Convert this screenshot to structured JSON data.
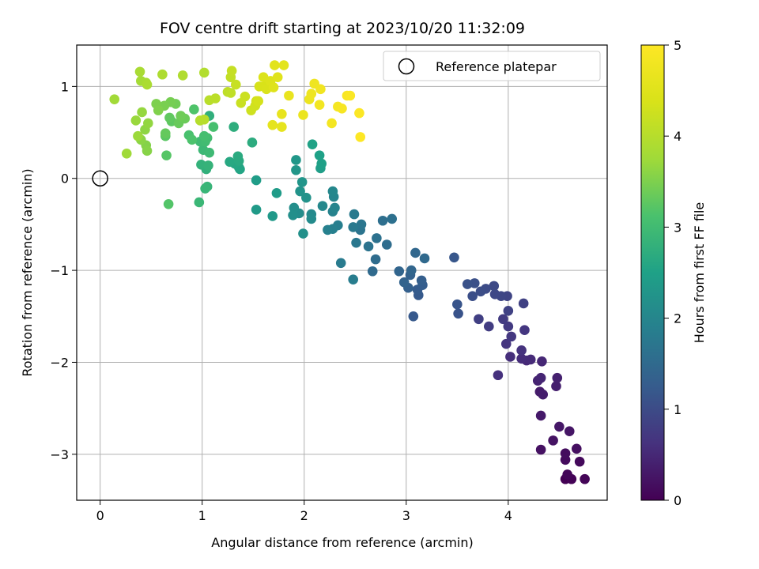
{
  "chart_data": {
    "type": "scatter",
    "title": "FOV centre drift starting at 2023/10/20 11:32:09",
    "xlabel": "Angular distance from reference (arcmin)",
    "ylabel": "Rotation from reference (arcmin)",
    "xlim": [
      -0.23,
      4.97
    ],
    "ylim": [
      -3.5,
      1.45
    ],
    "xticks": [
      0,
      1,
      2,
      3,
      4
    ],
    "yticks": [
      1,
      0,
      -1,
      -2,
      -3
    ],
    "grid": true,
    "legend": {
      "placement": "top-right",
      "entries": [
        "Reference platepar"
      ]
    },
    "reference_point": {
      "x": 0,
      "y": 0,
      "label": "Reference platepar"
    },
    "colorbar": {
      "label": "Hours from first FF file",
      "colormap": "viridis",
      "range": [
        0,
        5
      ],
      "ticks": [
        0,
        1,
        2,
        3,
        4,
        5
      ]
    },
    "series": [
      {
        "points": [
          [
            4.56,
            -3.27
          ],
          [
            4.62,
            -3.27
          ],
          [
            4.75,
            -3.27
          ],
          [
            4.58,
            -3.22
          ],
          [
            4.7,
            -3.08
          ],
          [
            4.56,
            -3.06
          ],
          [
            4.56,
            -2.99
          ],
          [
            4.67,
            -2.94
          ],
          [
            4.32,
            -2.95
          ],
          [
            4.44,
            -2.85
          ],
          [
            4.6,
            -2.75
          ],
          [
            4.5,
            -2.7
          ],
          [
            4.32,
            -2.58
          ],
          [
            4.31,
            -2.32
          ],
          [
            4.34,
            -2.35
          ],
          [
            4.47,
            -2.26
          ],
          [
            4.48,
            -2.17
          ],
          [
            4.29,
            -2.2
          ],
          [
            4.32,
            -2.17
          ],
          [
            4.33,
            -1.99
          ],
          [
            4.18,
            -1.98
          ],
          [
            4.22,
            -1.97
          ],
          [
            4.13,
            -1.96
          ],
          [
            4.02,
            -1.94
          ],
          [
            3.9,
            -2.14
          ],
          [
            4.13,
            -1.87
          ],
          [
            3.98,
            -1.8
          ],
          [
            4.16,
            -1.65
          ],
          [
            4.03,
            -1.72
          ],
          [
            4.0,
            -1.61
          ],
          [
            3.95,
            -1.53
          ],
          [
            3.81,
            -1.61
          ],
          [
            3.71,
            -1.53
          ],
          [
            4.15,
            -1.36
          ],
          [
            4.0,
            -1.44
          ],
          [
            3.99,
            -1.28
          ],
          [
            3.93,
            -1.28
          ],
          [
            3.87,
            -1.26
          ],
          [
            3.86,
            -1.17
          ],
          [
            3.78,
            -1.2
          ],
          [
            3.73,
            -1.23
          ],
          [
            3.65,
            -1.28
          ],
          [
            3.67,
            -1.14
          ],
          [
            3.6,
            -1.15
          ],
          [
            3.51,
            -1.47
          ],
          [
            3.5,
            -1.37
          ],
          [
            3.47,
            -0.86
          ],
          [
            3.07,
            -1.5
          ],
          [
            3.12,
            -1.27
          ],
          [
            3.11,
            -1.21
          ],
          [
            3.16,
            -1.16
          ],
          [
            3.15,
            -1.11
          ],
          [
            3.02,
            -1.19
          ],
          [
            3.04,
            -1.05
          ],
          [
            2.98,
            -1.13
          ],
          [
            2.93,
            -1.01
          ],
          [
            3.05,
            -1.0
          ],
          [
            3.09,
            -0.81
          ],
          [
            3.18,
            -0.87
          ],
          [
            2.67,
            -1.01
          ],
          [
            2.7,
            -0.88
          ],
          [
            2.81,
            -0.72
          ],
          [
            2.77,
            -0.46
          ],
          [
            2.86,
            -0.44
          ],
          [
            2.71,
            -0.65
          ],
          [
            2.63,
            -0.74
          ],
          [
            2.55,
            -0.56
          ],
          [
            2.56,
            -0.5
          ],
          [
            2.51,
            -0.7
          ],
          [
            2.48,
            -0.53
          ],
          [
            2.49,
            -0.39
          ],
          [
            2.36,
            -0.92
          ],
          [
            2.48,
            -1.1
          ],
          [
            2.33,
            -0.51
          ],
          [
            2.28,
            -0.55
          ],
          [
            2.23,
            -0.56
          ],
          [
            2.28,
            -0.36
          ],
          [
            2.3,
            -0.32
          ],
          [
            2.29,
            -0.2
          ],
          [
            2.28,
            -0.14
          ],
          [
            2.18,
            -0.3
          ],
          [
            2.07,
            -0.39
          ],
          [
            2.07,
            -0.44
          ],
          [
            1.95,
            -0.38
          ],
          [
            1.9,
            -0.32
          ],
          [
            1.89,
            -0.4
          ],
          [
            1.99,
            -0.6
          ],
          [
            2.02,
            -0.21
          ],
          [
            1.96,
            -0.14
          ],
          [
            1.98,
            -0.04
          ],
          [
            1.92,
            0.09
          ],
          [
            1.92,
            0.2
          ],
          [
            1.69,
            -0.41
          ],
          [
            1.53,
            -0.34
          ],
          [
            1.73,
            -0.16
          ],
          [
            1.53,
            -0.02
          ],
          [
            2.16,
            0.11
          ],
          [
            2.17,
            0.16
          ],
          [
            2.15,
            0.25
          ],
          [
            2.08,
            0.37
          ],
          [
            1.37,
            0.1
          ],
          [
            1.36,
            0.12
          ],
          [
            1.32,
            0.16
          ],
          [
            1.27,
            0.18
          ],
          [
            1.36,
            0.19
          ],
          [
            1.35,
            0.24
          ],
          [
            1.49,
            0.39
          ],
          [
            1.31,
            0.56
          ],
          [
            1.07,
            0.68
          ],
          [
            1.04,
            0.1
          ],
          [
            0.99,
            0.15
          ],
          [
            1.06,
            0.14
          ],
          [
            1.05,
            -0.09
          ],
          [
            1.03,
            -0.11
          ],
          [
            0.97,
            -0.26
          ],
          [
            1.01,
            0.31
          ],
          [
            1.07,
            0.28
          ],
          [
            0.98,
            0.4
          ],
          [
            1.03,
            0.4
          ],
          [
            1.05,
            0.44
          ],
          [
            1.02,
            0.46
          ],
          [
            1.11,
            0.56
          ],
          [
            0.87,
            0.47
          ],
          [
            0.9,
            0.42
          ],
          [
            0.92,
            0.75
          ],
          [
            0.67,
            -0.28
          ],
          [
            0.65,
            0.25
          ],
          [
            0.64,
            0.46
          ],
          [
            0.7,
            0.62
          ],
          [
            0.68,
            0.66
          ],
          [
            0.64,
            0.49
          ],
          [
            0.77,
            0.6
          ],
          [
            0.83,
            0.65
          ],
          [
            0.79,
            0.68
          ],
          [
            0.74,
            0.81
          ],
          [
            0.69,
            0.83
          ],
          [
            0.63,
            0.79
          ],
          [
            0.55,
            0.81
          ],
          [
            0.57,
            0.74
          ],
          [
            0.45,
            0.36
          ],
          [
            0.46,
            0.3
          ],
          [
            0.4,
            0.42
          ],
          [
            0.44,
            0.53
          ],
          [
            0.47,
            0.6
          ],
          [
            0.41,
            0.72
          ],
          [
            0.35,
            0.63
          ],
          [
            0.37,
            0.46
          ],
          [
            0.26,
            0.27
          ],
          [
            0.14,
            0.86
          ],
          [
            0.4,
            1.06
          ],
          [
            0.45,
            1.04
          ],
          [
            0.39,
            1.16
          ],
          [
            0.46,
            1.02
          ],
          [
            0.61,
            1.13
          ],
          [
            0.81,
            1.12
          ],
          [
            1.02,
            1.15
          ],
          [
            0.98,
            0.63
          ],
          [
            1.02,
            0.64
          ],
          [
            1.07,
            0.85
          ],
          [
            1.13,
            0.87
          ],
          [
            1.25,
            0.94
          ],
          [
            1.28,
            0.93
          ],
          [
            1.28,
            1.1
          ],
          [
            1.29,
            1.17
          ],
          [
            1.33,
            1.02
          ],
          [
            1.38,
            0.82
          ],
          [
            1.42,
            0.89
          ],
          [
            1.48,
            0.74
          ],
          [
            1.52,
            0.79
          ],
          [
            1.53,
            0.84
          ],
          [
            1.55,
            0.84
          ],
          [
            1.56,
            1.0
          ],
          [
            1.61,
            1.0
          ],
          [
            1.63,
            0.97
          ],
          [
            1.6,
            1.1
          ],
          [
            1.67,
            1.06
          ],
          [
            1.7,
            0.99
          ],
          [
            1.74,
            1.1
          ],
          [
            1.71,
            1.23
          ],
          [
            1.8,
            1.23
          ],
          [
            1.69,
            0.58
          ],
          [
            1.78,
            0.56
          ],
          [
            1.78,
            0.7
          ],
          [
            1.85,
            0.9
          ],
          [
            1.99,
            0.69
          ],
          [
            2.05,
            0.86
          ],
          [
            2.07,
            0.92
          ],
          [
            2.1,
            1.03
          ],
          [
            2.16,
            0.97
          ],
          [
            2.15,
            0.8
          ],
          [
            2.27,
            0.6
          ],
          [
            2.33,
            0.78
          ],
          [
            2.37,
            0.76
          ],
          [
            2.42,
            0.9
          ],
          [
            2.45,
            0.9
          ],
          [
            2.54,
            0.71
          ],
          [
            2.55,
            0.45
          ]
        ]
      }
    ]
  }
}
